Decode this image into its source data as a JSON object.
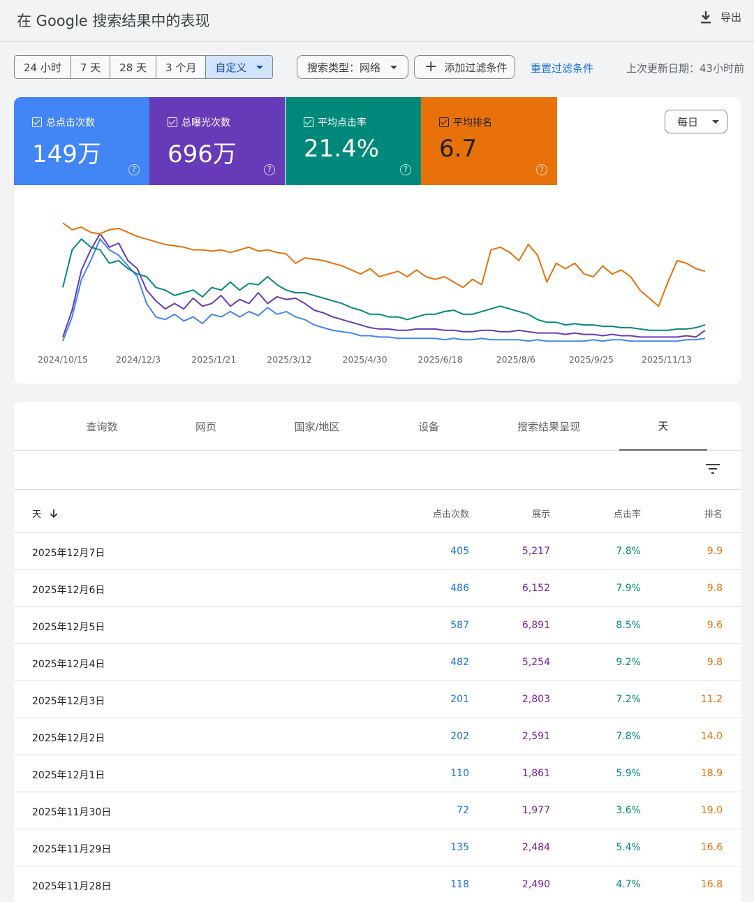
{
  "header": {
    "title": "在 Google 搜索结果中的表现",
    "export_label": "导出"
  },
  "filters": {
    "ranges": [
      "24 小时",
      "7 天",
      "28 天",
      "3 个月",
      "自定义"
    ],
    "search_type": "搜索类型：网络",
    "add_filter": "添加过滤条件",
    "reset": "重置过滤条件",
    "updated": "上次更新日期：43小时前"
  },
  "metrics": [
    {
      "label": "总点击次数",
      "value": "149万",
      "color": "#4285f4"
    },
    {
      "label": "总曝光次数",
      "value": "696万",
      "color": "#673ab7"
    },
    {
      "label": "平均点击率",
      "value": "21.4%",
      "color": "#00897b"
    },
    {
      "label": "平均排名",
      "value": "6.7",
      "color": "#e8710a"
    }
  ],
  "granularity": "每日",
  "chart_data": {
    "type": "line",
    "x_tick_labels": [
      "2024/10/15",
      "2024/12/3",
      "2025/1/21",
      "2025/3/12",
      "2025/4/30",
      "2025/6/18",
      "2025/8/6",
      "2025/9/25",
      "2025/11/13"
    ],
    "grid": false,
    "legend": "metric cards above chart",
    "series": [
      {
        "name": "总点击次数",
        "color": "#4285f4",
        "values": [
          0.02,
          0.2,
          0.48,
          0.62,
          0.78,
          0.7,
          0.66,
          0.58,
          0.5,
          0.3,
          0.2,
          0.18,
          0.22,
          0.17,
          0.2,
          0.15,
          0.22,
          0.2,
          0.24,
          0.2,
          0.24,
          0.21,
          0.27,
          0.22,
          0.24,
          0.2,
          0.18,
          0.14,
          0.12,
          0.1,
          0.09,
          0.08,
          0.06,
          0.06,
          0.05,
          0.05,
          0.04,
          0.04,
          0.04,
          0.04,
          0.04,
          0.03,
          0.04,
          0.03,
          0.03,
          0.04,
          0.03,
          0.03,
          0.03,
          0.03,
          0.02,
          0.03,
          0.02,
          0.02,
          0.02,
          0.02,
          0.02,
          0.03,
          0.02,
          0.03,
          0.03,
          0.02,
          0.02,
          0.02,
          0.02,
          0.02,
          0.02,
          0.03,
          0.03,
          0.04
        ]
      },
      {
        "name": "总曝光次数",
        "color": "#673ab7",
        "values": [
          0.05,
          0.25,
          0.55,
          0.7,
          0.82,
          0.72,
          0.75,
          0.62,
          0.56,
          0.4,
          0.32,
          0.26,
          0.3,
          0.26,
          0.34,
          0.28,
          0.3,
          0.36,
          0.28,
          0.33,
          0.3,
          0.38,
          0.3,
          0.35,
          0.33,
          0.34,
          0.3,
          0.25,
          0.23,
          0.2,
          0.18,
          0.16,
          0.14,
          0.12,
          0.11,
          0.11,
          0.1,
          0.1,
          0.11,
          0.11,
          0.11,
          0.1,
          0.1,
          0.09,
          0.09,
          0.1,
          0.1,
          0.09,
          0.09,
          0.1,
          0.09,
          0.08,
          0.08,
          0.08,
          0.07,
          0.08,
          0.07,
          0.07,
          0.06,
          0.07,
          0.06,
          0.06,
          0.05,
          0.05,
          0.05,
          0.05,
          0.05,
          0.06,
          0.05,
          0.1
        ]
      },
      {
        "name": "平均点击率",
        "color": "#00897b",
        "values": [
          0.42,
          0.7,
          0.78,
          0.72,
          0.7,
          0.6,
          0.62,
          0.56,
          0.52,
          0.5,
          0.42,
          0.4,
          0.36,
          0.38,
          0.4,
          0.35,
          0.42,
          0.4,
          0.46,
          0.4,
          0.45,
          0.44,
          0.5,
          0.44,
          0.4,
          0.38,
          0.38,
          0.36,
          0.34,
          0.32,
          0.3,
          0.27,
          0.25,
          0.22,
          0.22,
          0.2,
          0.2,
          0.18,
          0.2,
          0.22,
          0.22,
          0.24,
          0.25,
          0.22,
          0.22,
          0.24,
          0.26,
          0.28,
          0.26,
          0.24,
          0.22,
          0.18,
          0.16,
          0.16,
          0.14,
          0.15,
          0.14,
          0.14,
          0.13,
          0.13,
          0.12,
          0.12,
          0.11,
          0.1,
          0.1,
          0.1,
          0.11,
          0.11,
          0.12,
          0.14
        ]
      },
      {
        "name": "平均排名",
        "color": "#e8710a",
        "values": [
          0.9,
          0.85,
          0.87,
          0.83,
          0.82,
          0.85,
          0.86,
          0.83,
          0.8,
          0.78,
          0.76,
          0.74,
          0.73,
          0.72,
          0.7,
          0.7,
          0.69,
          0.7,
          0.68,
          0.7,
          0.72,
          0.69,
          0.7,
          0.68,
          0.67,
          0.6,
          0.64,
          0.63,
          0.62,
          0.6,
          0.58,
          0.55,
          0.52,
          0.56,
          0.5,
          0.52,
          0.54,
          0.5,
          0.55,
          0.5,
          0.48,
          0.5,
          0.46,
          0.42,
          0.48,
          0.44,
          0.7,
          0.72,
          0.68,
          0.62,
          0.74,
          0.66,
          0.46,
          0.6,
          0.56,
          0.6,
          0.52,
          0.5,
          0.58,
          0.52,
          0.55,
          0.5,
          0.4,
          0.34,
          0.28,
          0.46,
          0.62,
          0.6,
          0.56,
          0.54
        ]
      }
    ]
  },
  "tabs": [
    "查询数",
    "网页",
    "国家/地区",
    "设备",
    "搜索结果呈现",
    "天"
  ],
  "table": {
    "headers": {
      "day": "天",
      "clicks": "点击次数",
      "impressions": "展示",
      "ctr": "点击率",
      "position": "排名"
    },
    "rows": [
      {
        "day": "2025年12月7日",
        "clicks": "405",
        "impressions": "5,217",
        "ctr": "7.8%",
        "position": "9.9"
      },
      {
        "day": "2025年12月6日",
        "clicks": "486",
        "impressions": "6,152",
        "ctr": "7.9%",
        "position": "9.8"
      },
      {
        "day": "2025年12月5日",
        "clicks": "587",
        "impressions": "6,891",
        "ctr": "8.5%",
        "position": "9.6"
      },
      {
        "day": "2025年12月4日",
        "clicks": "482",
        "impressions": "5,254",
        "ctr": "9.2%",
        "position": "9.8"
      },
      {
        "day": "2025年12月3日",
        "clicks": "201",
        "impressions": "2,803",
        "ctr": "7.2%",
        "position": "11.2"
      },
      {
        "day": "2025年12月2日",
        "clicks": "202",
        "impressions": "2,591",
        "ctr": "7.8%",
        "position": "14.0"
      },
      {
        "day": "2025年12月1日",
        "clicks": "110",
        "impressions": "1,861",
        "ctr": "5.9%",
        "position": "18.9"
      },
      {
        "day": "2025年11月30日",
        "clicks": "72",
        "impressions": "1,977",
        "ctr": "3.6%",
        "position": "19.0"
      },
      {
        "day": "2025年11月29日",
        "clicks": "135",
        "impressions": "2,484",
        "ctr": "5.4%",
        "position": "16.6"
      },
      {
        "day": "2025年11月28日",
        "clicks": "118",
        "impressions": "2,490",
        "ctr": "4.7%",
        "position": "16.8"
      }
    ]
  }
}
